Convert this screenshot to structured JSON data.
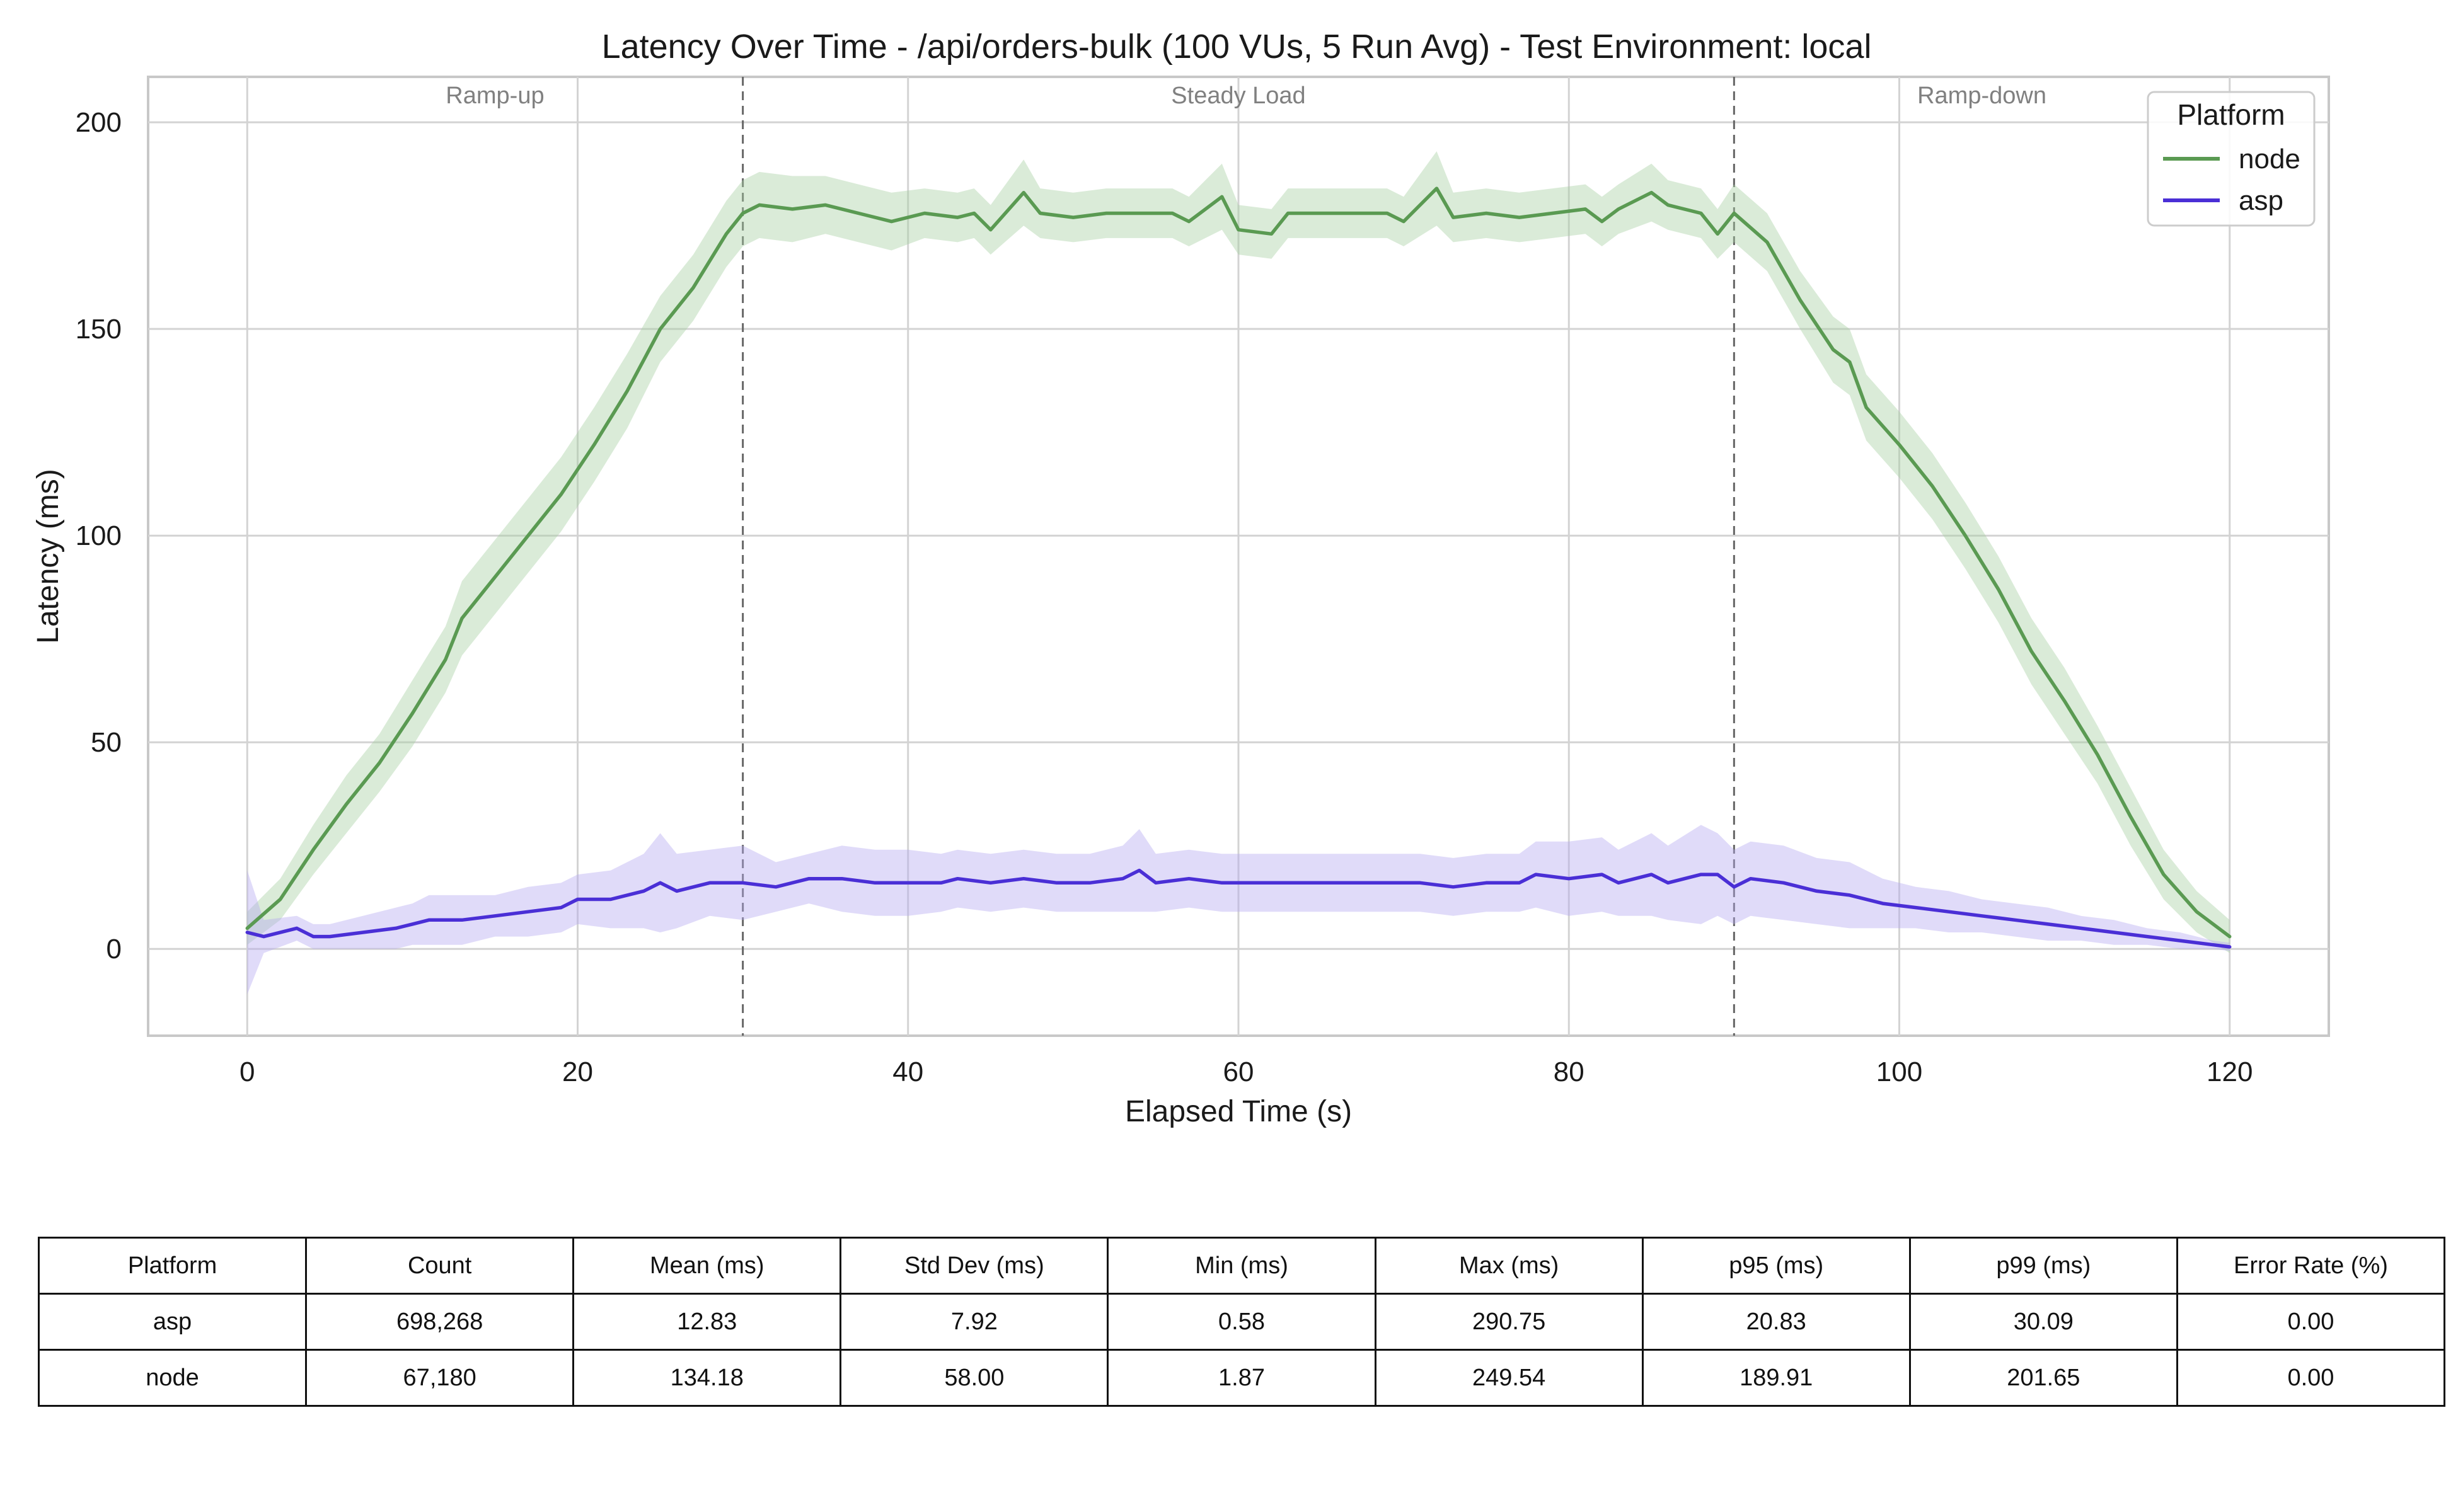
{
  "chart_data": {
    "type": "line",
    "title": "Latency Over Time - /api/orders-bulk (100 VUs, 5 Run Avg) - Test Environment: local",
    "xlabel": "Elapsed Time (s)",
    "ylabel": "Latency (ms)",
    "xlim": [
      -6,
      126
    ],
    "ylim": [
      -21,
      211
    ],
    "xticks": [
      0,
      20,
      40,
      60,
      80,
      100,
      120
    ],
    "yticks": [
      0,
      50,
      100,
      150,
      200
    ],
    "grid": true,
    "legend": {
      "title": "Platform",
      "placement": "top-right"
    },
    "phase_markers": [
      30,
      90
    ],
    "phases": [
      {
        "label": "Ramp-up",
        "x": 15
      },
      {
        "label": "Steady Load",
        "x": 60
      },
      {
        "label": "Ramp-down",
        "x": 105
      }
    ],
    "series": [
      {
        "name": "node",
        "color": "#5a9a52",
        "band_color": "#a8cfa3",
        "points": [
          [
            0,
            5
          ],
          [
            2,
            12
          ],
          [
            4,
            24
          ],
          [
            6,
            35
          ],
          [
            8,
            45
          ],
          [
            10,
            57
          ],
          [
            12,
            70
          ],
          [
            13,
            80
          ],
          [
            15,
            90
          ],
          [
            17,
            100
          ],
          [
            19,
            110
          ],
          [
            21,
            122
          ],
          [
            23,
            135
          ],
          [
            25,
            150
          ],
          [
            27,
            160
          ],
          [
            29,
            173
          ],
          [
            30,
            178
          ],
          [
            31,
            180
          ],
          [
            33,
            179
          ],
          [
            35,
            180
          ],
          [
            37,
            178
          ],
          [
            39,
            176
          ],
          [
            41,
            178
          ],
          [
            43,
            177
          ],
          [
            44,
            178
          ],
          [
            45,
            174
          ],
          [
            47,
            183
          ],
          [
            48,
            178
          ],
          [
            50,
            177
          ],
          [
            52,
            178
          ],
          [
            54,
            178
          ],
          [
            56,
            178
          ],
          [
            57,
            176
          ],
          [
            59,
            182
          ],
          [
            60,
            174
          ],
          [
            62,
            173
          ],
          [
            63,
            178
          ],
          [
            65,
            178
          ],
          [
            67,
            178
          ],
          [
            69,
            178
          ],
          [
            70,
            176
          ],
          [
            72,
            184
          ],
          [
            73,
            177
          ],
          [
            75,
            178
          ],
          [
            77,
            177
          ],
          [
            79,
            178
          ],
          [
            81,
            179
          ],
          [
            82,
            176
          ],
          [
            83,
            179
          ],
          [
            85,
            183
          ],
          [
            86,
            180
          ],
          [
            88,
            178
          ],
          [
            89,
            173
          ],
          [
            90,
            178
          ],
          [
            92,
            171
          ],
          [
            94,
            157
          ],
          [
            96,
            145
          ],
          [
            97,
            142
          ],
          [
            98,
            131
          ],
          [
            100,
            122
          ],
          [
            102,
            112
          ],
          [
            104,
            100
          ],
          [
            106,
            87
          ],
          [
            108,
            72
          ],
          [
            110,
            60
          ],
          [
            112,
            47
          ],
          [
            114,
            32
          ],
          [
            116,
            18
          ],
          [
            118,
            9
          ],
          [
            120,
            3
          ]
        ],
        "band_halfwidth": [
          4,
          5,
          6,
          7,
          7,
          8,
          8,
          9,
          9,
          9,
          9,
          9,
          9,
          8,
          8,
          8,
          8,
          8,
          8,
          7,
          7,
          7,
          6,
          6,
          6,
          6,
          8,
          6,
          6,
          6,
          6,
          6,
          6,
          8,
          6,
          6,
          6,
          6,
          6,
          6,
          6,
          9,
          6,
          6,
          6,
          6,
          6,
          6,
          6,
          7,
          6,
          6,
          6,
          7,
          7,
          7,
          8,
          8,
          8,
          8,
          8,
          8,
          8,
          8,
          8,
          7,
          7,
          6,
          5,
          4,
          3
        ]
      },
      {
        "name": "asp",
        "color": "#4a2fd6",
        "band_color": "#b6aaf0",
        "points": [
          [
            0,
            4
          ],
          [
            1,
            3
          ],
          [
            3,
            5
          ],
          [
            4,
            3
          ],
          [
            5,
            3
          ],
          [
            7,
            4
          ],
          [
            9,
            5
          ],
          [
            10,
            6
          ],
          [
            11,
            7
          ],
          [
            13,
            7
          ],
          [
            15,
            8
          ],
          [
            17,
            9
          ],
          [
            19,
            10
          ],
          [
            20,
            12
          ],
          [
            22,
            12
          ],
          [
            24,
            14
          ],
          [
            25,
            16
          ],
          [
            26,
            14
          ],
          [
            28,
            16
          ],
          [
            30,
            16
          ],
          [
            32,
            15
          ],
          [
            34,
            17
          ],
          [
            36,
            17
          ],
          [
            38,
            16
          ],
          [
            40,
            16
          ],
          [
            42,
            16
          ],
          [
            43,
            17
          ],
          [
            45,
            16
          ],
          [
            47,
            17
          ],
          [
            49,
            16
          ],
          [
            51,
            16
          ],
          [
            53,
            17
          ],
          [
            54,
            19
          ],
          [
            55,
            16
          ],
          [
            57,
            17
          ],
          [
            59,
            16
          ],
          [
            61,
            16
          ],
          [
            63,
            16
          ],
          [
            65,
            16
          ],
          [
            67,
            16
          ],
          [
            69,
            16
          ],
          [
            71,
            16
          ],
          [
            73,
            15
          ],
          [
            75,
            16
          ],
          [
            77,
            16
          ],
          [
            78,
            18
          ],
          [
            80,
            17
          ],
          [
            82,
            18
          ],
          [
            83,
            16
          ],
          [
            85,
            18
          ],
          [
            86,
            16
          ],
          [
            88,
            18
          ],
          [
            89,
            18
          ],
          [
            90,
            15
          ],
          [
            91,
            17
          ],
          [
            93,
            16
          ],
          [
            95,
            14
          ],
          [
            97,
            13
          ],
          [
            99,
            11
          ],
          [
            101,
            10
          ],
          [
            103,
            9
          ],
          [
            105,
            8
          ],
          [
            107,
            7
          ],
          [
            109,
            6
          ],
          [
            111,
            5
          ],
          [
            113,
            4
          ],
          [
            115,
            3
          ],
          [
            117,
            2
          ],
          [
            119,
            1
          ],
          [
            120,
            0.5
          ]
        ],
        "band_halfwidth": [
          15,
          4,
          3,
          3,
          3,
          4,
          5,
          5,
          6,
          6,
          5,
          6,
          6,
          6,
          7,
          9,
          12,
          9,
          8,
          9,
          6,
          6,
          8,
          8,
          8,
          7,
          7,
          7,
          7,
          7,
          7,
          8,
          10,
          7,
          7,
          7,
          7,
          7,
          7,
          7,
          7,
          7,
          7,
          7,
          7,
          8,
          9,
          9,
          8,
          10,
          9,
          12,
          10,
          9,
          9,
          9,
          8,
          8,
          6,
          5,
          5,
          4,
          4,
          4,
          3,
          3,
          2,
          2,
          1,
          1
        ]
      }
    ],
    "table": {
      "headers": [
        "Platform",
        "Count",
        "Mean (ms)",
        "Std Dev (ms)",
        "Min (ms)",
        "Max (ms)",
        "p95 (ms)",
        "p99 (ms)",
        "Error Rate (%)"
      ],
      "rows": [
        [
          "asp",
          "698,268",
          "12.83",
          "7.92",
          "0.58",
          "290.75",
          "20.83",
          "30.09",
          "0.00"
        ],
        [
          "node",
          "67,180",
          "134.18",
          "58.00",
          "1.87",
          "249.54",
          "189.91",
          "201.65",
          "0.00"
        ]
      ]
    }
  }
}
